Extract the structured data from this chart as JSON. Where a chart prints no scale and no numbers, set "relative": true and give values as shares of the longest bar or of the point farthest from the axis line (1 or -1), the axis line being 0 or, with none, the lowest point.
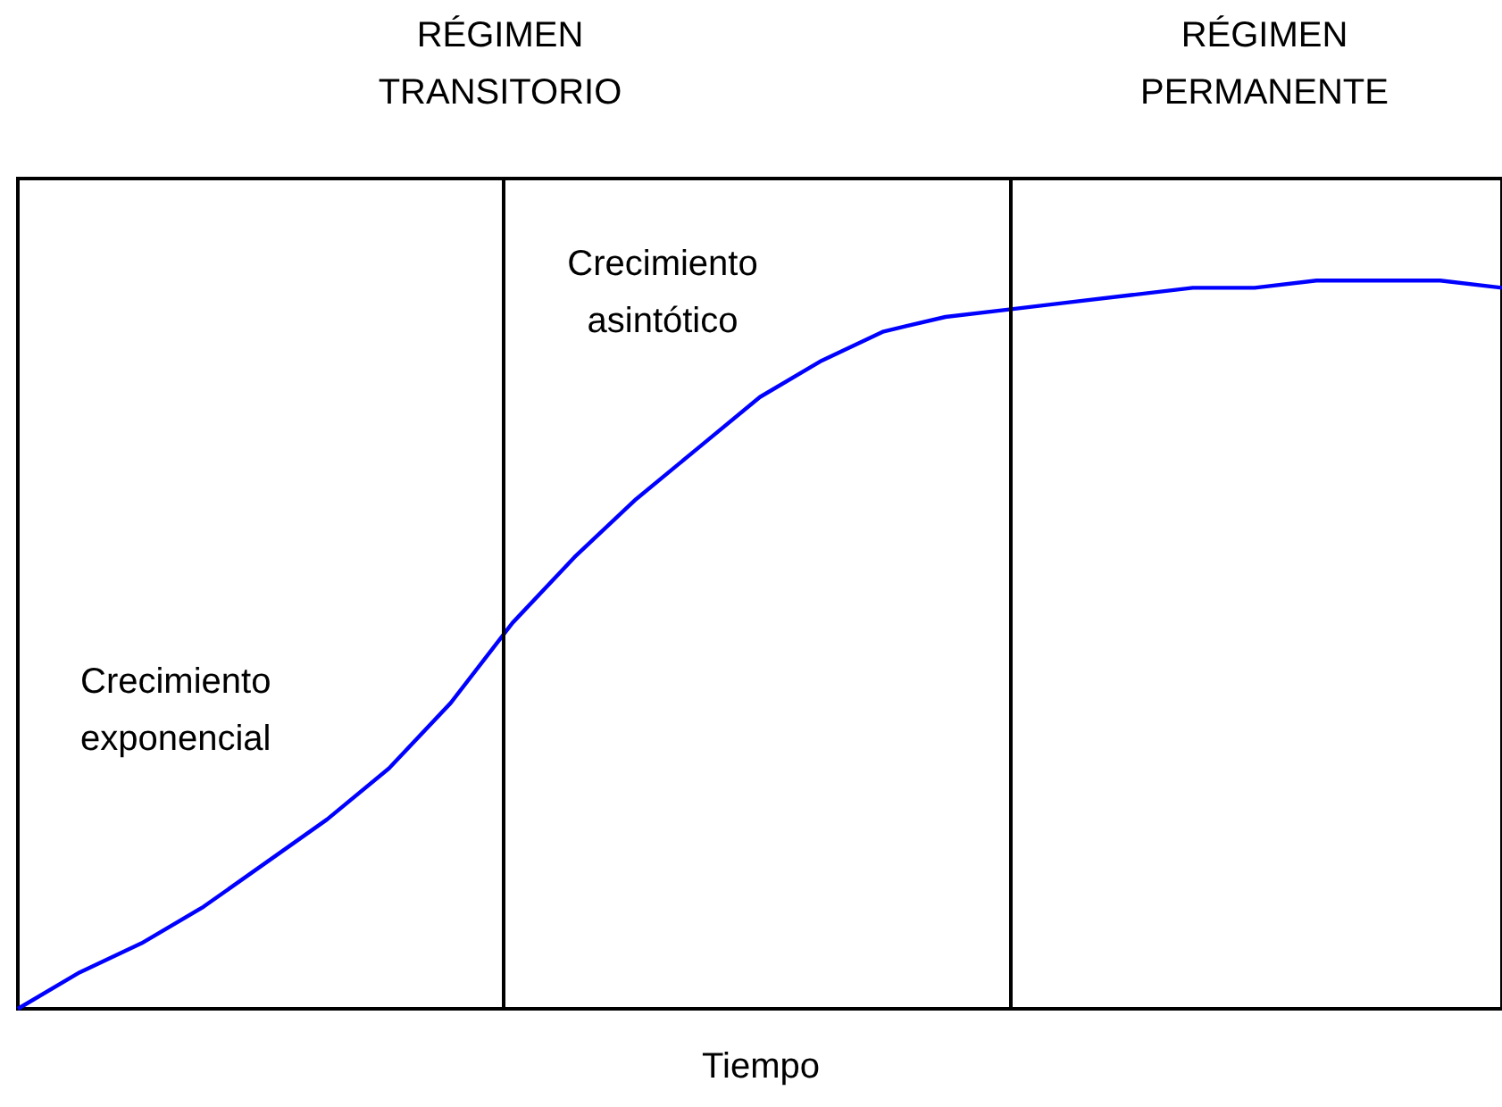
{
  "chart_data": {
    "type": "line",
    "relative": true,
    "xlabel": "Tiempo",
    "categories": [
      null,
      null,
      null,
      null,
      null,
      null,
      null,
      null,
      null,
      null,
      null,
      null,
      null,
      null,
      null,
      null,
      null,
      null,
      null,
      null,
      null,
      null,
      null,
      null,
      null
    ],
    "series": [
      {
        "color": "#0000ff",
        "values": [
          0,
          0.05,
          0.09,
          0.14,
          0.2,
          0.26,
          0.33,
          0.42,
          0.53,
          0.62,
          0.7,
          0.77,
          0.84,
          0.89,
          0.93,
          0.95,
          0.96,
          0.97,
          0.98,
          0.99,
          0.99,
          1,
          1,
          1,
          0.99
        ]
      }
    ],
    "annotations": [
      "RÉGIMEN\nTRANSITORIO",
      "RÉGIMEN\nPERMANENTE",
      "Crecimiento\nasintótico",
      "Crecimiento\nexponencial"
    ],
    "grid": false,
    "marker": "none",
    "line_style": "solid"
  }
}
